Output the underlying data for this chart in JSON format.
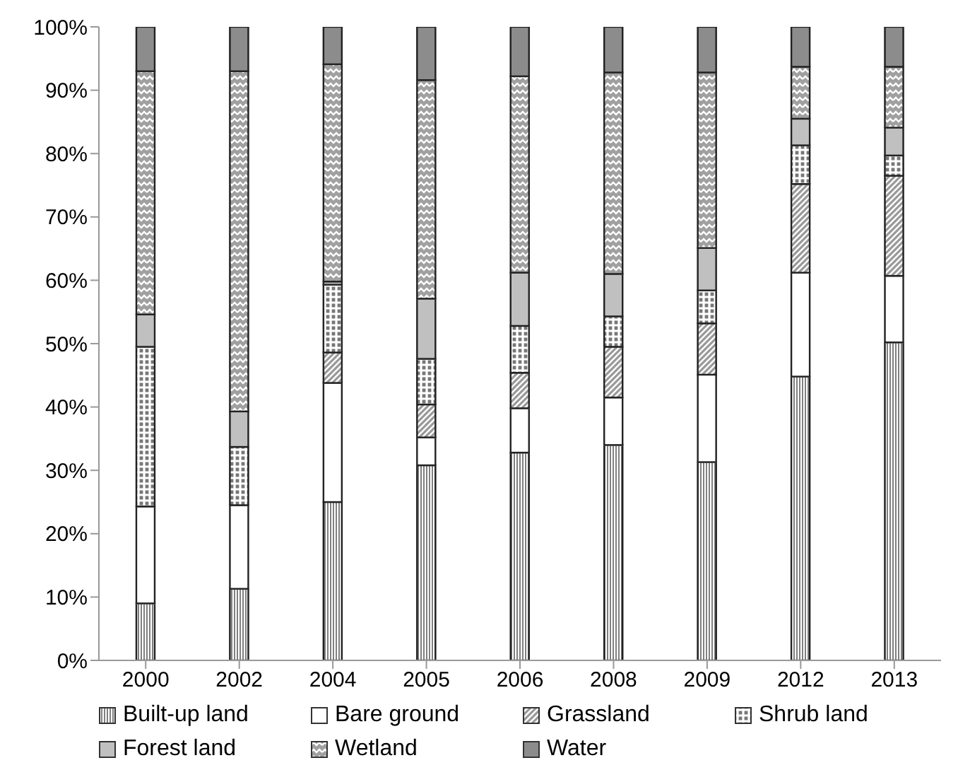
{
  "chart_data": {
    "type": "bar",
    "stacked": true,
    "categories": [
      "2000",
      "2002",
      "2004",
      "2005",
      "2006",
      "2008",
      "2009",
      "2012",
      "2013"
    ],
    "series": [
      {
        "name": "Built-up land",
        "color": "#808080",
        "values": [
          9,
          11.3,
          25,
          30.8,
          32.8,
          34,
          31.3,
          44.8,
          50.2
        ]
      },
      {
        "name": "Bare ground",
        "color": "#ffffff",
        "values": [
          15.3,
          13.2,
          18.8,
          4.4,
          7,
          7.5,
          13.8,
          16.4,
          10.5
        ]
      },
      {
        "name": "Grassland",
        "color": "#999999",
        "values": [
          0,
          0,
          4.8,
          5.2,
          5.6,
          8,
          8.1,
          14,
          15.8
        ]
      },
      {
        "name": "Shrub land",
        "color": "#777777",
        "values": [
          25.2,
          9.2,
          10.7,
          7.2,
          7.4,
          4.8,
          5.2,
          6.1,
          3.2
        ]
      },
      {
        "name": "Forest land",
        "color": "#c0c0c0",
        "values": [
          5.1,
          5.6,
          0.5,
          9.5,
          8.4,
          6.7,
          6.7,
          4.2,
          4.4
        ]
      },
      {
        "name": "Wetland",
        "color": "#a0a0a0",
        "values": [
          38.4,
          53.7,
          34.3,
          34.5,
          31,
          31.8,
          27.7,
          8.2,
          9.6
        ]
      },
      {
        "name": "Water",
        "color": "#8c8c8c",
        "values": [
          7,
          7,
          5.9,
          8.4,
          7.8,
          7.2,
          7.2,
          6.3,
          6.3
        ]
      }
    ],
    "ylim": [
      0,
      100
    ],
    "yticks": [
      {
        "value": 0,
        "label": "0%"
      },
      {
        "value": 10,
        "label": "10%"
      },
      {
        "value": 20,
        "label": "20%"
      },
      {
        "value": 30,
        "label": "30%"
      },
      {
        "value": 40,
        "label": "40%"
      },
      {
        "value": 50,
        "label": "50%"
      },
      {
        "value": 60,
        "label": "60%"
      },
      {
        "value": 70,
        "label": "70%"
      },
      {
        "value": 80,
        "label": "80%"
      },
      {
        "value": 90,
        "label": "90%"
      },
      {
        "value": 100,
        "label": "100%"
      }
    ],
    "grid": false,
    "legend": "bottom"
  }
}
